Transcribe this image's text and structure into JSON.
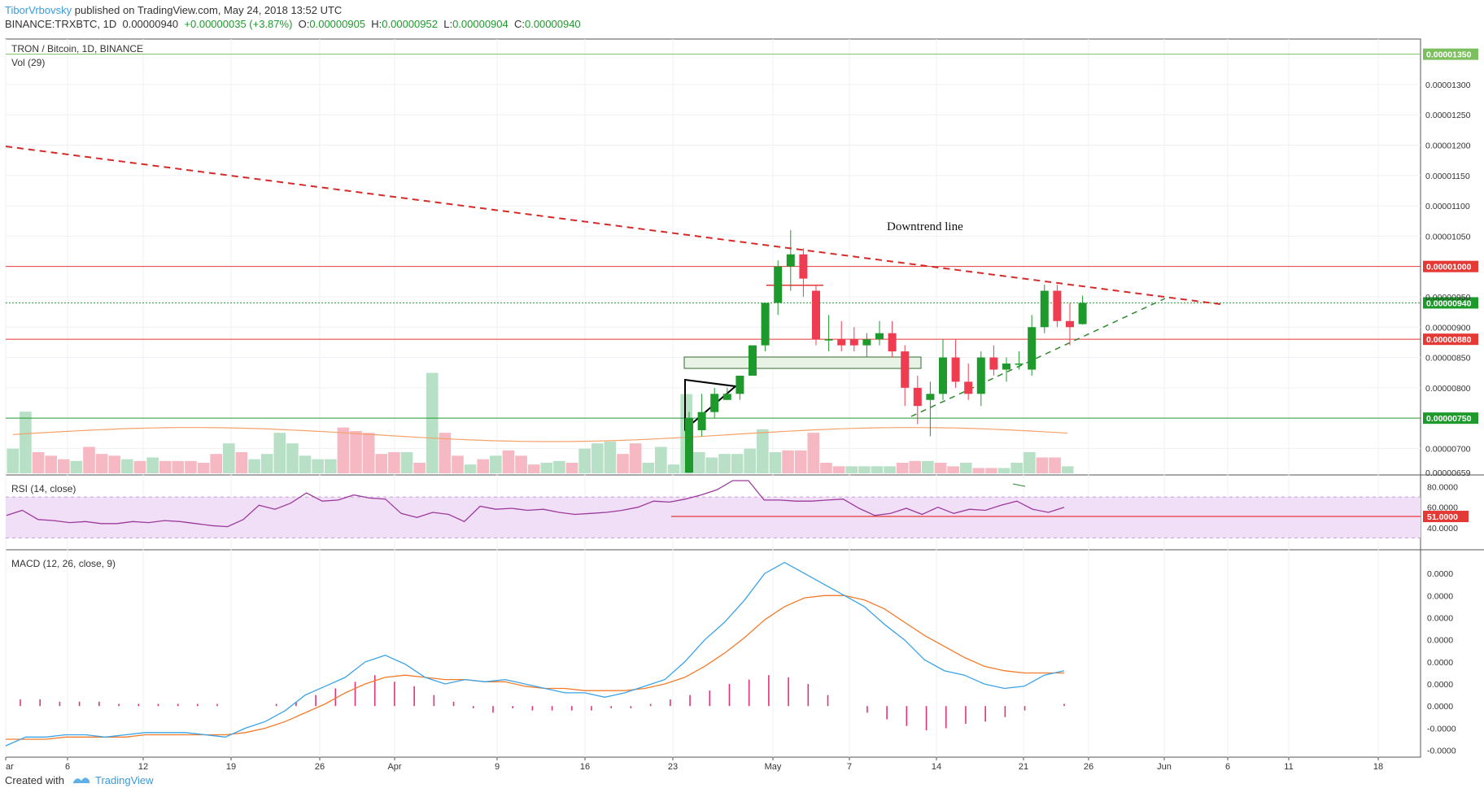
{
  "header": {
    "author": "TiborVrbovsky",
    "published": " published on TradingView.com, May 24, 2018 13:52 UTC",
    "symbol": "BINANCE:TRXBTC, 1D",
    "last": "0.00000940",
    "change": "+0.00000035 (+3.87%)",
    "o_label": "O:",
    "o_value": "0.00000905",
    "h_label": "H:",
    "h_value": "0.00000952",
    "l_label": "L:",
    "l_value": "0.00000904",
    "c_label": "C:",
    "c_value": "0.00000940"
  },
  "footer": {
    "created_with": "Created with",
    "brand": "TradingView"
  },
  "colors": {
    "up": "#1e9a2c",
    "down": "#f03c50",
    "up_vol": "#b8e0c6",
    "down_vol": "#f6b8c2",
    "trend_red": "#d52a2a",
    "trend_green": "#2f8a2f",
    "rsi": "#9c3a9c",
    "rsi_band": "#f1dff8",
    "macd": "#3ba3e6",
    "signal": "#f27b2a",
    "hist": "#e0337a",
    "author": "#3b9ad8"
  },
  "chart_data": {
    "type": "candlestick",
    "title": "TRON / Bitcoin, 1D, BINANCE",
    "volume_label": "Vol (29)",
    "annotation": "Downtrend line",
    "x_ticks": [
      "ar",
      "6",
      "12",
      "19",
      "26",
      "Apr",
      "9",
      "16",
      "23",
      "May",
      "7",
      "14",
      "21",
      "26",
      "Jun",
      "6",
      "11",
      "18"
    ],
    "price_axis": {
      "range": [
        6.59e-06,
        1.375e-05
      ],
      "ticks": [
        "0.00001300",
        "0.00001250",
        "0.00001200",
        "0.00001150",
        "0.00001100",
        "0.00001050",
        "0.00000950",
        "0.00000900",
        "0.00000850",
        "0.00000800",
        "0.00000700"
      ],
      "bottom_label": "0.00000659"
    },
    "horizontal_levels": [
      {
        "price": 1.35e-05,
        "label": "0.00001350",
        "color": "#7cbf5e"
      },
      {
        "price": 1e-05,
        "label": "0.00001000",
        "color": "#e53935"
      },
      {
        "price": 9.4e-06,
        "label": "0.00000940",
        "color": "#1e9a2c"
      },
      {
        "price": 8.8e-06,
        "label": "0.00000880",
        "color": "#e53935"
      },
      {
        "price": 7.5e-06,
        "label": "0.00000750",
        "color": "#1e9a2c"
      }
    ],
    "candles": [
      {
        "o": 6.6e-06,
        "h": 7.6e-06,
        "l": 6.6e-06,
        "c": 7.5e-06
      },
      {
        "o": 7.3e-06,
        "h": 7.9e-06,
        "l": 7.2e-06,
        "c": 7.6e-06
      },
      {
        "o": 7.6e-06,
        "h": 8e-06,
        "l": 7.5e-06,
        "c": 7.9e-06
      },
      {
        "o": 7.8e-06,
        "h": 8e-06,
        "l": 7.8e-06,
        "c": 7.9e-06
      },
      {
        "o": 7.9e-06,
        "h": 8.2e-06,
        "l": 7.8e-06,
        "c": 8.2e-06
      },
      {
        "o": 8.2e-06,
        "h": 8.7e-06,
        "l": 8.2e-06,
        "c": 8.7e-06
      },
      {
        "o": 8.7e-06,
        "h": 9.4e-06,
        "l": 8.6e-06,
        "c": 9.4e-06
      },
      {
        "o": 9.4e-06,
        "h": 1.01e-05,
        "l": 9.2e-06,
        "c": 1e-05
      },
      {
        "o": 1e-05,
        "h": 1.06e-05,
        "l": 9.6e-06,
        "c": 1.02e-05
      },
      {
        "o": 1.02e-05,
        "h": 1.03e-05,
        "l": 9.5e-06,
        "c": 9.8e-06
      },
      {
        "o": 9.6e-06,
        "h": 9.7e-06,
        "l": 8.7e-06,
        "c": 8.8e-06
      },
      {
        "o": 8.8e-06,
        "h": 9.2e-06,
        "l": 8.6e-06,
        "c": 8.8e-06
      },
      {
        "o": 8.8e-06,
        "h": 9.1e-06,
        "l": 8.6e-06,
        "c": 8.7e-06
      },
      {
        "o": 8.8e-06,
        "h": 9e-06,
        "l": 8.6e-06,
        "c": 8.7e-06
      },
      {
        "o": 8.7e-06,
        "h": 8.9e-06,
        "l": 8.5e-06,
        "c": 8.8e-06
      },
      {
        "o": 8.8e-06,
        "h": 9.1e-06,
        "l": 8.7e-06,
        "c": 8.9e-06
      },
      {
        "o": 8.9e-06,
        "h": 9.1e-06,
        "l": 8.5e-06,
        "c": 8.6e-06
      },
      {
        "o": 8.6e-06,
        "h": 8.7e-06,
        "l": 7.7e-06,
        "c": 8e-06
      },
      {
        "o": 8e-06,
        "h": 8.2e-06,
        "l": 7.4e-06,
        "c": 7.7e-06
      },
      {
        "o": 7.8e-06,
        "h": 8.1e-06,
        "l": 7.2e-06,
        "c": 7.9e-06
      },
      {
        "o": 7.9e-06,
        "h": 8.8e-06,
        "l": 7.8e-06,
        "c": 8.5e-06
      },
      {
        "o": 8.5e-06,
        "h": 8.8e-06,
        "l": 8e-06,
        "c": 8.1e-06
      },
      {
        "o": 8.1e-06,
        "h": 8.4e-06,
        "l": 7.8e-06,
        "c": 7.9e-06
      },
      {
        "o": 7.9e-06,
        "h": 8.6e-06,
        "l": 7.7e-06,
        "c": 8.5e-06
      },
      {
        "o": 8.5e-06,
        "h": 8.7e-06,
        "l": 8.2e-06,
        "c": 8.3e-06
      },
      {
        "o": 8.3e-06,
        "h": 8.5e-06,
        "l": 8.1e-06,
        "c": 8.4e-06
      },
      {
        "o": 8.4e-06,
        "h": 8.6e-06,
        "l": 8.3e-06,
        "c": 8.4e-06
      },
      {
        "o": 8.3e-06,
        "h": 9.2e-06,
        "l": 8.2e-06,
        "c": 9e-06
      },
      {
        "o": 9e-06,
        "h": 9.7e-06,
        "l": 8.9e-06,
        "c": 9.6e-06
      },
      {
        "o": 9.6e-06,
        "h": 9.7e-06,
        "l": 9e-06,
        "c": 9.1e-06
      },
      {
        "o": 9.1e-06,
        "h": 9.4e-06,
        "l": 8.7e-06,
        "c": 9e-06
      },
      {
        "o": 9.05e-06,
        "h": 9.52e-06,
        "l": 9.04e-06,
        "c": 9.4e-06
      }
    ],
    "volume": [
      {
        "v": 14,
        "dir": "up"
      },
      {
        "v": 35,
        "dir": "up"
      },
      {
        "v": 12,
        "dir": "down"
      },
      {
        "v": 10,
        "dir": "down"
      },
      {
        "v": 8,
        "dir": "down"
      },
      {
        "v": 7,
        "dir": "up"
      },
      {
        "v": 15,
        "dir": "down"
      },
      {
        "v": 11,
        "dir": "down"
      },
      {
        "v": 10,
        "dir": "down"
      },
      {
        "v": 8,
        "dir": "up"
      },
      {
        "v": 7,
        "dir": "down"
      },
      {
        "v": 9,
        "dir": "up"
      },
      {
        "v": 7,
        "dir": "down"
      },
      {
        "v": 7,
        "dir": "down"
      },
      {
        "v": 7,
        "dir": "down"
      },
      {
        "v": 6,
        "dir": "down"
      },
      {
        "v": 11,
        "dir": "down"
      },
      {
        "v": 17,
        "dir": "up"
      },
      {
        "v": 12,
        "dir": "down"
      },
      {
        "v": 8,
        "dir": "up"
      },
      {
        "v": 11,
        "dir": "up"
      },
      {
        "v": 23,
        "dir": "up"
      },
      {
        "v": 17,
        "dir": "up"
      },
      {
        "v": 10,
        "dir": "up"
      },
      {
        "v": 8,
        "dir": "up"
      },
      {
        "v": 8,
        "dir": "up"
      },
      {
        "v": 26,
        "dir": "down"
      },
      {
        "v": 24,
        "dir": "down"
      },
      {
        "v": 23,
        "dir": "down"
      },
      {
        "v": 11,
        "dir": "down"
      },
      {
        "v": 12,
        "dir": "down"
      },
      {
        "v": 12,
        "dir": "up"
      },
      {
        "v": 6,
        "dir": "down"
      },
      {
        "v": 57,
        "dir": "up"
      },
      {
        "v": 23,
        "dir": "down"
      },
      {
        "v": 10,
        "dir": "down"
      },
      {
        "v": 5,
        "dir": "up"
      },
      {
        "v": 8,
        "dir": "down"
      },
      {
        "v": 10,
        "dir": "up"
      },
      {
        "v": 13,
        "dir": "down"
      },
      {
        "v": 10,
        "dir": "down"
      },
      {
        "v": 5,
        "dir": "down"
      },
      {
        "v": 6,
        "dir": "up"
      },
      {
        "v": 7,
        "dir": "up"
      },
      {
        "v": 6,
        "dir": "down"
      },
      {
        "v": 14,
        "dir": "up"
      },
      {
        "v": 17,
        "dir": "up"
      },
      {
        "v": 18,
        "dir": "up"
      },
      {
        "v": 11,
        "dir": "down"
      },
      {
        "v": 17,
        "dir": "down"
      },
      {
        "v": 6,
        "dir": "up"
      },
      {
        "v": 15,
        "dir": "up"
      },
      {
        "v": 5,
        "dir": "up"
      },
      {
        "v": 45,
        "dir": "up"
      },
      {
        "v": 12,
        "dir": "up"
      },
      {
        "v": 9,
        "dir": "up"
      },
      {
        "v": 11,
        "dir": "up"
      },
      {
        "v": 11,
        "dir": "up"
      },
      {
        "v": 14,
        "dir": "up"
      },
      {
        "v": 25,
        "dir": "up"
      },
      {
        "v": 12,
        "dir": "up"
      },
      {
        "v": 13,
        "dir": "down"
      },
      {
        "v": 13,
        "dir": "down"
      },
      {
        "v": 23,
        "dir": "down"
      },
      {
        "v": 6,
        "dir": "down"
      },
      {
        "v": 4,
        "dir": "down"
      },
      {
        "v": 4,
        "dir": "up"
      },
      {
        "v": 4,
        "dir": "up"
      },
      {
        "v": 4,
        "dir": "up"
      },
      {
        "v": 4,
        "dir": "up"
      },
      {
        "v": 6,
        "dir": "down"
      },
      {
        "v": 7,
        "dir": "down"
      },
      {
        "v": 7,
        "dir": "up"
      },
      {
        "v": 6,
        "dir": "down"
      },
      {
        "v": 4,
        "dir": "down"
      },
      {
        "v": 6,
        "dir": "up"
      },
      {
        "v": 3,
        "dir": "down"
      },
      {
        "v": 3,
        "dir": "down"
      },
      {
        "v": 3,
        "dir": "up"
      },
      {
        "v": 6,
        "dir": "up"
      },
      {
        "v": 12,
        "dir": "up"
      },
      {
        "v": 9,
        "dir": "down"
      },
      {
        "v": 9,
        "dir": "down"
      },
      {
        "v": 4,
        "dir": "up"
      }
    ],
    "rsi": {
      "label": "RSI (14, close)",
      "ticks": [
        "80.0000",
        "60.0000",
        "40.0000"
      ],
      "level_label": "51.0000",
      "values": [
        52,
        57,
        48,
        47,
        45,
        46,
        44,
        44,
        46,
        45,
        47,
        46,
        44,
        42,
        41,
        48,
        62,
        58,
        64,
        74,
        66,
        67,
        72,
        69,
        68,
        54,
        50,
        55,
        53,
        46,
        61,
        58,
        59,
        57,
        58,
        55,
        53,
        54,
        55,
        57,
        60,
        66,
        65,
        68,
        72,
        77,
        86,
        86,
        67,
        67,
        66,
        66,
        67,
        68,
        59,
        52,
        54,
        59,
        53,
        60,
        54,
        58,
        57,
        62,
        66,
        58,
        55,
        60
      ]
    },
    "macd": {
      "label": "MACD (12, 26, close, 9)",
      "ticks": [
        "0.0000",
        "0.0000",
        "0.0000",
        "0.0000",
        "0.0000",
        "0.0000",
        "0.0000",
        "-0.0000",
        "-0.0000"
      ],
      "macd_line": [
        -0.18,
        -0.14,
        -0.14,
        -0.13,
        -0.13,
        -0.14,
        -0.13,
        -0.12,
        -0.12,
        -0.12,
        -0.13,
        -0.14,
        -0.1,
        -0.07,
        -0.02,
        0.05,
        0.09,
        0.13,
        0.2,
        0.23,
        0.19,
        0.13,
        0.1,
        0.12,
        0.11,
        0.12,
        0.1,
        0.08,
        0.06,
        0.06,
        0.04,
        0.06,
        0.09,
        0.12,
        0.2,
        0.3,
        0.38,
        0.48,
        0.6,
        0.65,
        0.6,
        0.55,
        0.5,
        0.45,
        0.37,
        0.3,
        0.21,
        0.16,
        0.14,
        0.1,
        0.08,
        0.09,
        0.14,
        0.16
      ]
    },
    "signal_line": [
      -0.15,
      -0.15,
      -0.15,
      -0.14,
      -0.14,
      -0.14,
      -0.14,
      -0.13,
      -0.13,
      -0.13,
      -0.13,
      -0.13,
      -0.12,
      -0.1,
      -0.07,
      -0.03,
      0.01,
      0.06,
      0.1,
      0.13,
      0.14,
      0.13,
      0.12,
      0.12,
      0.11,
      0.11,
      0.09,
      0.08,
      0.08,
      0.07,
      0.07,
      0.07,
      0.08,
      0.1,
      0.13,
      0.18,
      0.24,
      0.31,
      0.39,
      0.45,
      0.49,
      0.5,
      0.5,
      0.48,
      0.44,
      0.38,
      0.32,
      0.27,
      0.22,
      0.18,
      0.16,
      0.15,
      0.15,
      0.15
    ],
    "histogram": [
      0.03,
      0.03,
      0.02,
      0.02,
      0.02,
      0.01,
      0.01,
      0.01,
      0.01,
      0.01,
      0.01,
      0.0,
      0.0,
      0.01,
      0.02,
      0.05,
      0.08,
      0.11,
      0.14,
      0.11,
      0.09,
      0.05,
      0.02,
      -0.01,
      -0.03,
      -0.01,
      -0.02,
      -0.02,
      -0.02,
      -0.02,
      -0.01,
      -0.01,
      0.01,
      0.03,
      0.05,
      0.07,
      0.1,
      0.12,
      0.14,
      0.13,
      0.1,
      0.05,
      0.0,
      -0.03,
      -0.06,
      -0.09,
      -0.11,
      -0.1,
      -0.08,
      -0.07,
      -0.05,
      -0.02,
      0.0,
      0.01
    ]
  }
}
